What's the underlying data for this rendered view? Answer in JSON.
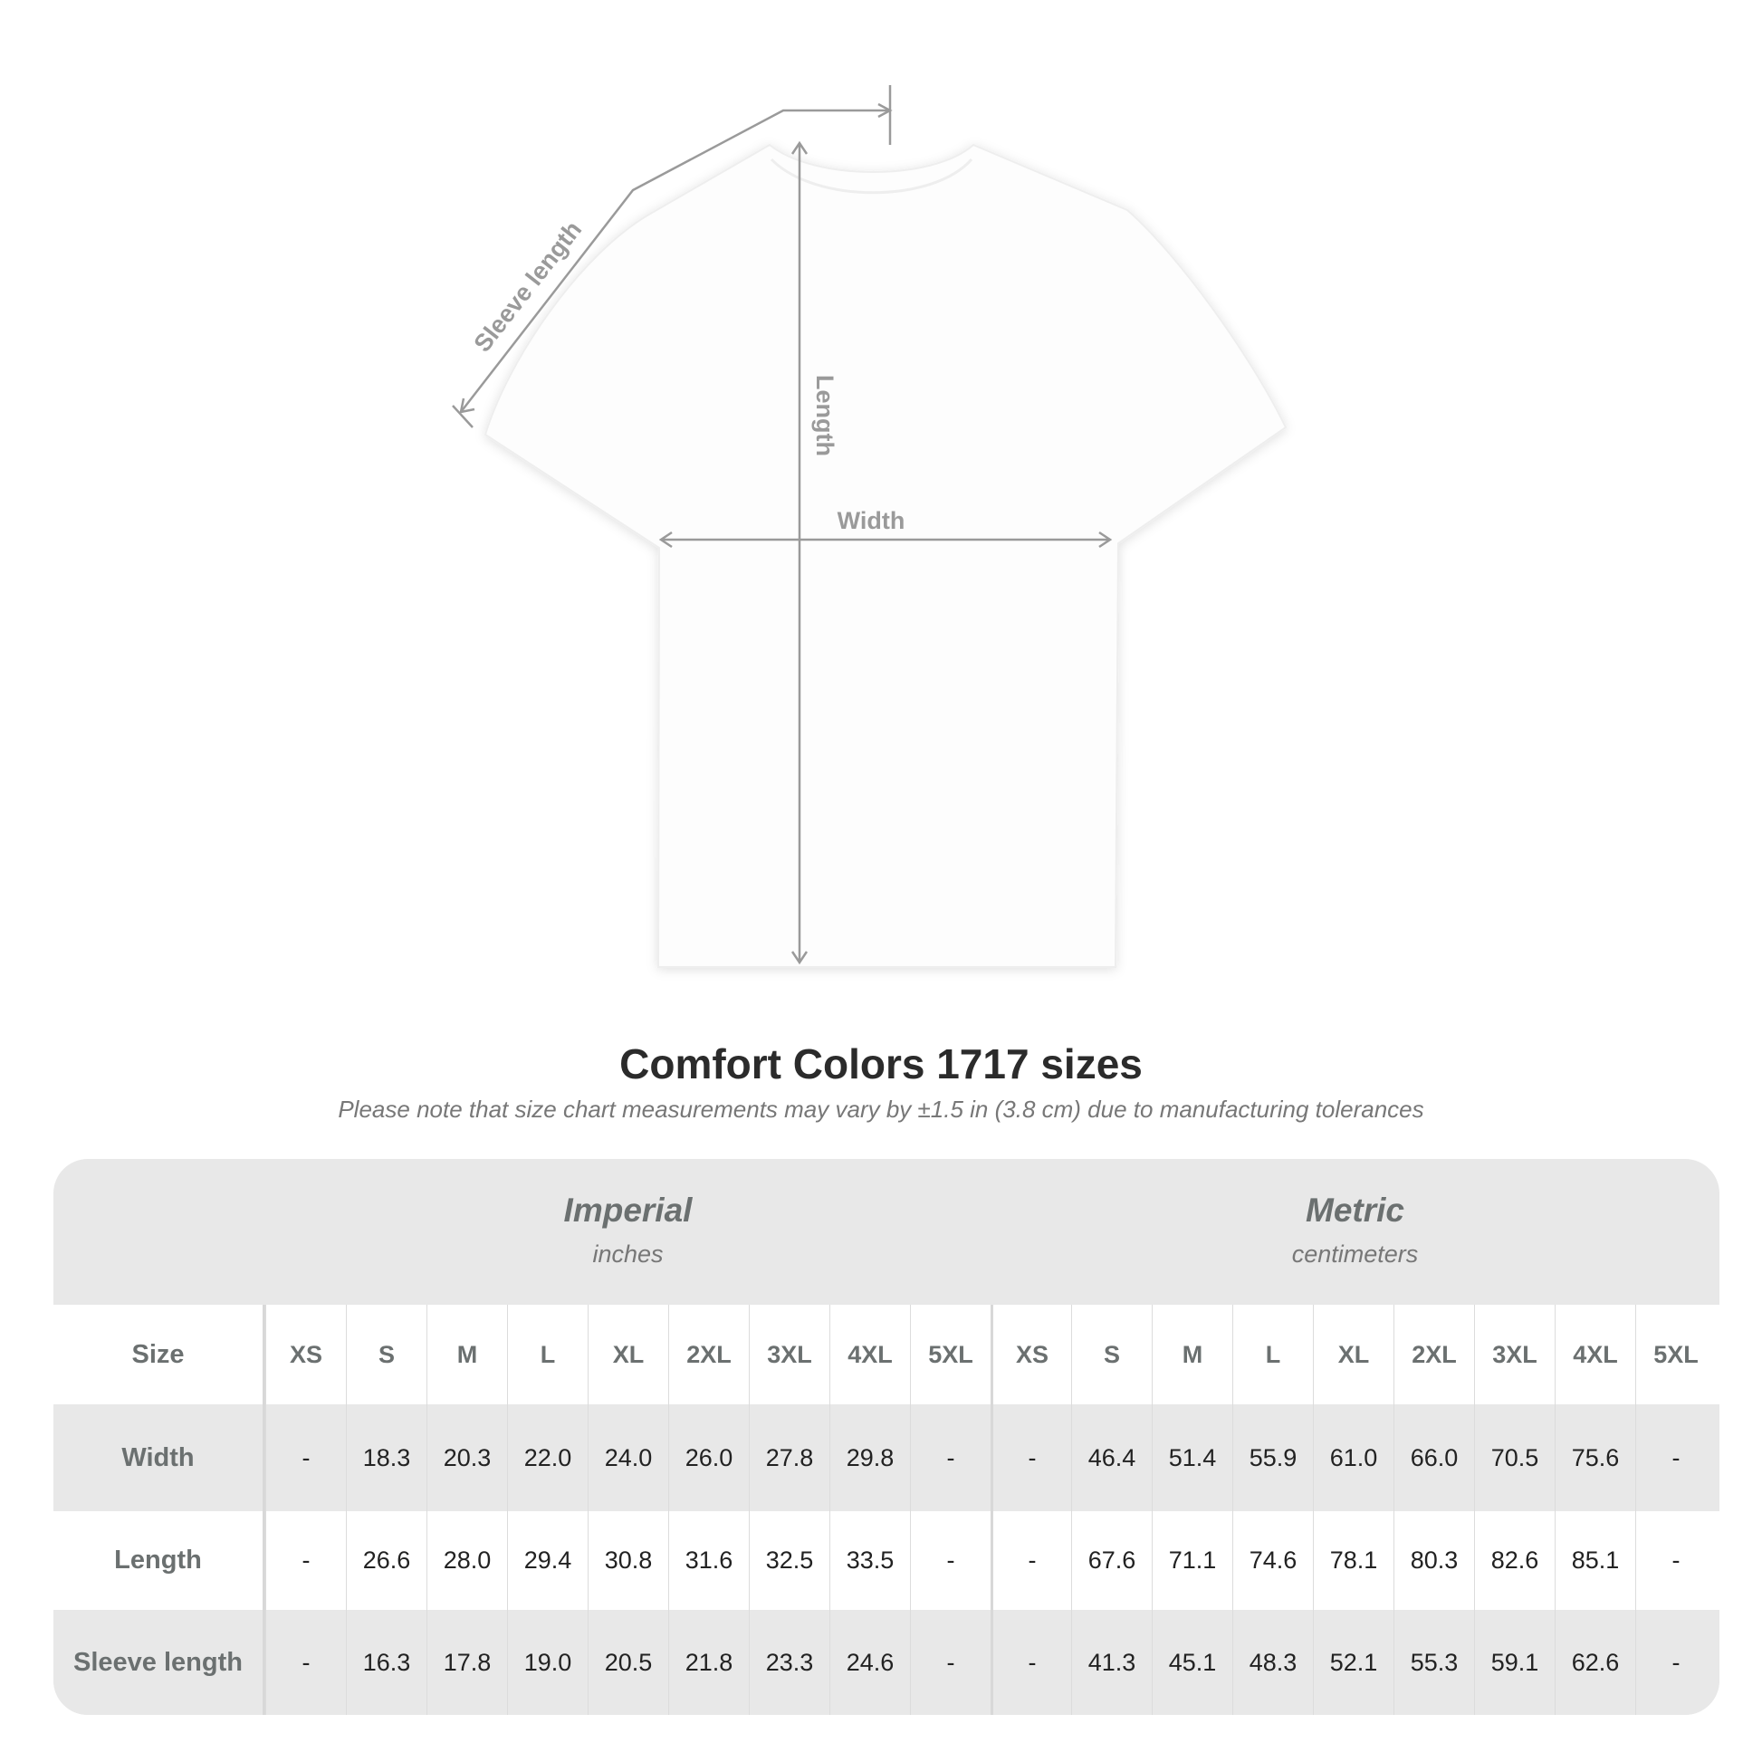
{
  "diagram": {
    "labels": {
      "sleeve": "Sleeve length",
      "length": "Length",
      "width": "Width"
    },
    "line_color": "#9a9a9a"
  },
  "title": "Comfort Colors 1717 sizes",
  "note": "Please note that size chart measurements may vary by ±1.5 in (3.8 cm) due to manufacturing tolerances",
  "table": {
    "imperial": {
      "system": "Imperial",
      "unit": "inches"
    },
    "metric": {
      "system": "Metric",
      "unit": "centimeters"
    },
    "size_label": "Size",
    "sizes": [
      "XS",
      "S",
      "M",
      "L",
      "XL",
      "2XL",
      "3XL",
      "4XL",
      "5XL"
    ],
    "rows": [
      {
        "label": "Width",
        "imperial": [
          "-",
          "18.3",
          "20.3",
          "22.0",
          "24.0",
          "26.0",
          "27.8",
          "29.8",
          "-"
        ],
        "metric": [
          "-",
          "46.4",
          "51.4",
          "55.9",
          "61.0",
          "66.0",
          "70.5",
          "75.6",
          "-"
        ]
      },
      {
        "label": "Length",
        "imperial": [
          "-",
          "26.6",
          "28.0",
          "29.4",
          "30.8",
          "31.6",
          "32.5",
          "33.5",
          "-"
        ],
        "metric": [
          "-",
          "67.6",
          "71.1",
          "74.6",
          "78.1",
          "80.3",
          "82.6",
          "85.1",
          "-"
        ]
      },
      {
        "label": "Sleeve length",
        "imperial": [
          "-",
          "16.3",
          "17.8",
          "19.0",
          "20.5",
          "21.8",
          "23.3",
          "24.6",
          "-"
        ],
        "metric": [
          "-",
          "41.3",
          "45.1",
          "48.3",
          "52.1",
          "55.3",
          "59.1",
          "62.6",
          "-"
        ]
      }
    ]
  }
}
